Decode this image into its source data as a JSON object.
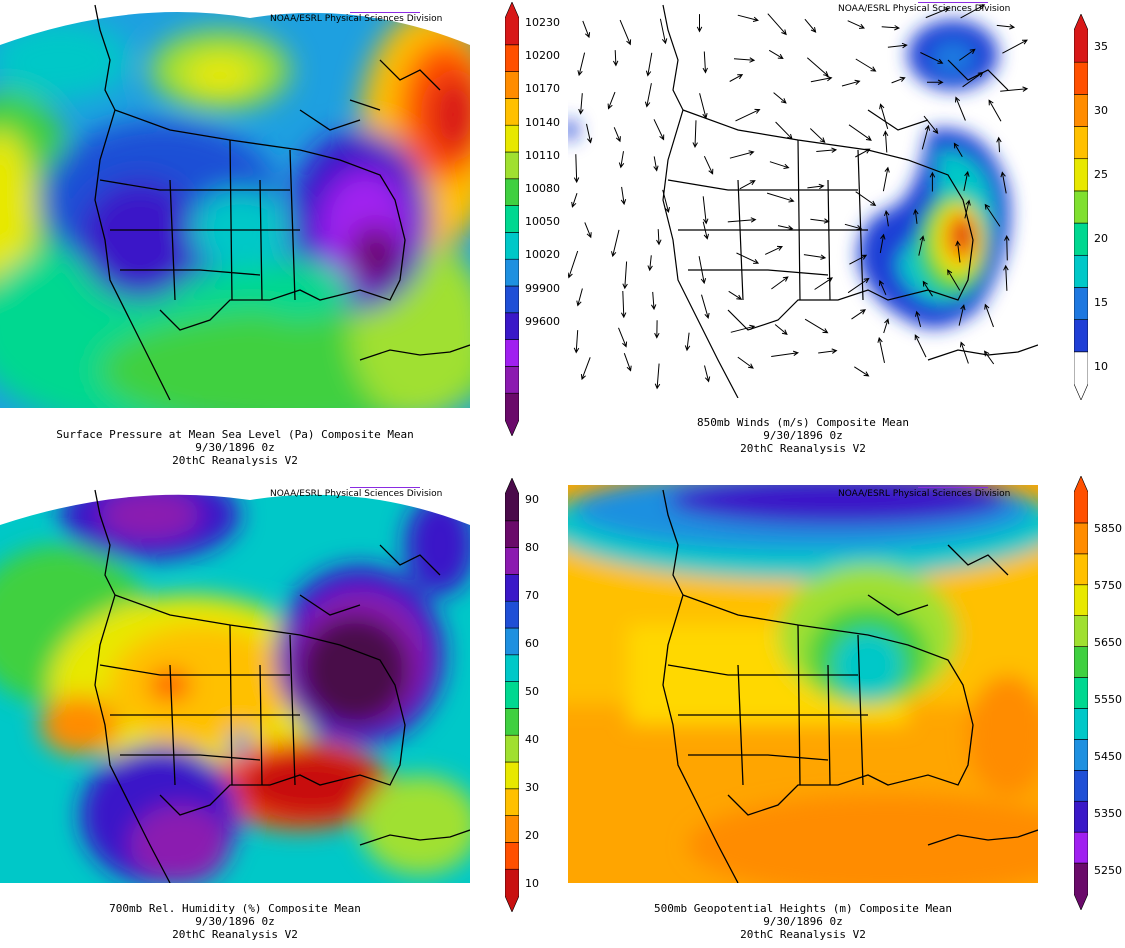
{
  "credit": "NOAA/ESRL Physical Sciences Division",
  "panels": [
    {
      "id": "slp",
      "caption": {
        "line1": "Surface Pressure at Mean Sea Level (Pa)   Composite Mean",
        "line2": "9/30/1896 0z",
        "line3": "20thC Reanalysis V2"
      },
      "colorbar": {
        "labels": [
          "10230",
          "10200",
          "10170",
          "10140",
          "10110",
          "10080",
          "10050",
          "10020",
          "99900",
          "99600"
        ],
        "colors": [
          "#6a0a6a",
          "#8b1ab0",
          "#a020f0",
          "#3a18c8",
          "#1f4fd6",
          "#1e90e0",
          "#00c8c8",
          "#00d890",
          "#40d040",
          "#a0e030",
          "#e8e800",
          "#ffc000",
          "#ff8c00",
          "#ff5000",
          "#d81818"
        ]
      }
    },
    {
      "id": "wind850",
      "caption": {
        "line1": "850mb Winds (m/s)   Composite Mean",
        "line2": "9/30/1896 0z",
        "line3": "20thC Reanalysis V2"
      },
      "colorbar": {
        "labels": [
          "35",
          "30",
          "25",
          "20",
          "15",
          "10"
        ],
        "colors": [
          "#ffffff",
          "#1f3fd6",
          "#1e78e0",
          "#00c8c8",
          "#00d890",
          "#80e030",
          "#e8e800",
          "#ffc000",
          "#ff8c00",
          "#ff5000",
          "#d81818"
        ]
      }
    },
    {
      "id": "rh700",
      "caption": {
        "line1": "700mb Rel. Humidity (%)   Composite Mean",
        "line2": "9/30/1896 0z",
        "line3": "20thC Reanalysis V2"
      },
      "colorbar": {
        "labels": [
          "90",
          "80",
          "70",
          "60",
          "50",
          "40",
          "30",
          "20",
          "10"
        ],
        "colors": [
          "#c81010",
          "#ff5000",
          "#ff8c00",
          "#ffc000",
          "#e8e800",
          "#a0e030",
          "#40d040",
          "#00d890",
          "#00c8c8",
          "#1e90e0",
          "#1f4fd6",
          "#3a18c8",
          "#8b1ab0",
          "#6a0a6a",
          "#4a0a4a"
        ]
      }
    },
    {
      "id": "hgt500",
      "caption": {
        "line1": "500mb Geopotential Heights (m)   Composite Mean",
        "line2": "9/30/1896 0z",
        "line3": "20thC Reanalysis V2"
      },
      "colorbar": {
        "labels": [
          "5850",
          "5750",
          "5650",
          "5550",
          "5450",
          "5350",
          "5250"
        ],
        "colors": [
          "#6a0a6a",
          "#a020f0",
          "#3a18c8",
          "#1f4fd6",
          "#1e90e0",
          "#00c8c8",
          "#00d890",
          "#40d040",
          "#a0e030",
          "#e8e800",
          "#ffc000",
          "#ff8c00",
          "#ff5000"
        ]
      }
    }
  ]
}
